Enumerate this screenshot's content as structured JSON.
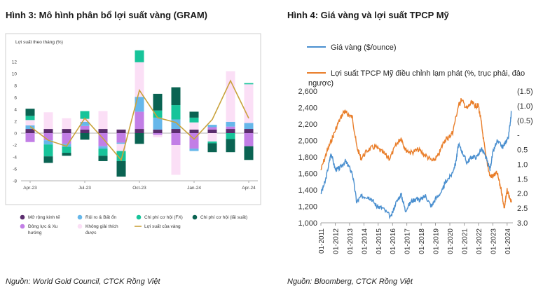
{
  "left": {
    "title": "Hình 3: Mô hình phân bổ lợi suất vàng (GRAM)",
    "source": "Nguồn: World Gold Council, CTCK Rồng Việt",
    "chart_data": {
      "type": "bar",
      "stacked": true,
      "ylabel": "Lợi suất theo tháng (%)",
      "ylim": [
        -8,
        12
      ],
      "yticks": [
        -8,
        -6,
        -4,
        -2,
        0,
        2,
        4,
        6,
        8,
        10,
        12
      ],
      "categories": [
        "Apr-23",
        "May-23",
        "Jun-23",
        "Jul-23",
        "Aug-23",
        "Sep-23",
        "Oct-23",
        "Nov-23",
        "Dec-23",
        "Jan-24",
        "Feb-24",
        "Mar-24",
        "Apr-24"
      ],
      "xtick_labels": [
        {
          "index": 0,
          "label": "Apr-23"
        },
        {
          "index": 3,
          "label": "Jul-23"
        },
        {
          "index": 6,
          "label": "Oct-23"
        },
        {
          "index": 9,
          "label": "Jan-24"
        },
        {
          "index": 12,
          "label": "Apr-24"
        }
      ],
      "series": [
        {
          "name": "Mở rộng kinh tế",
          "color": "#5b2d6e",
          "values": [
            0.7,
            0.7,
            0.7,
            0.6,
            0.7,
            0.6,
            0.7,
            0.6,
            0.7,
            0.6,
            0.6,
            0.7,
            0.7
          ]
        },
        {
          "name": "Đông lực & Xu hướng",
          "color": "#c27ee6",
          "values": [
            -1.5,
            -1.2,
            -1.8,
            0.6,
            -2.2,
            -1.6,
            2.9,
            -0.3,
            -2.0,
            -2.6,
            0.4,
            0.4,
            -2.2
          ]
        },
        {
          "name": "Rủi ro & Bất ổn",
          "color": "#66b7ea",
          "values": [
            0.6,
            -0.7,
            -0.5,
            0.7,
            -0.4,
            -0.2,
            2.5,
            2.0,
            1.6,
            -0.4,
            0.4,
            0.8,
            1.0
          ]
        },
        {
          "name": "Không giải thích được",
          "color": "#fbdff6",
          "values": [
            0.9,
            2.8,
            1.8,
            0.5,
            3.0,
            -1.2,
            5.8,
            -0.4,
            -5.0,
            1.2,
            -1.4,
            8.5,
            6.5
          ]
        },
        {
          "name": "Chi phí cơ hội (FX)",
          "color": "#17c49a",
          "values": [
            0.7,
            -2.0,
            -1.0,
            1.3,
            -1.2,
            -1.7,
            2.0,
            1.2,
            2.4,
            0.8,
            -0.3,
            -1.0,
            0.2
          ]
        },
        {
          "name": "Chi phí cơ hội (lãi suất)",
          "color": "#0a6352",
          "values": [
            1.2,
            -1.1,
            -0.5,
            -1.1,
            -0.9,
            -2.6,
            -1.8,
            2.8,
            3.0,
            1.0,
            -1.5,
            -2.2,
            -2.3
          ]
        }
      ],
      "line": {
        "name": "Lợi suất của vàng",
        "color": "#c9a23c",
        "values": [
          1.1,
          -1.2,
          -2.2,
          2.5,
          -0.9,
          -4.5,
          7.2,
          2.6,
          1.8,
          -1.0,
          2.3,
          8.8,
          2.5
        ]
      }
    }
  },
  "right": {
    "title": "Hình 4: Giá vàng và lợi suất TPCP Mỹ",
    "source": "Nguồn: Bloomberg, CTCK Rồng Việt",
    "chart_data": {
      "type": "line",
      "ylim_left": [
        1000,
        2600
      ],
      "yticks_left": [
        1000,
        1200,
        1400,
        1600,
        1800,
        2000,
        2200,
        2400,
        2600
      ],
      "ytick_labels_left": [
        "1,000",
        "1,200",
        "1,400",
        "1,600",
        "1,800",
        "2,000",
        "2,200",
        "2,400",
        "2,600"
      ],
      "ylim_right": [
        3.0,
        -1.5
      ],
      "right_axis_inverted": true,
      "yticks_right": [
        "(1.5)",
        "(1.0)",
        "(0.5)",
        "-",
        "0.5",
        "1.0",
        "1.5",
        "2.0",
        "2.5",
        "3.0"
      ],
      "xlabels": [
        "01-2011",
        "01-2012",
        "01-2013",
        "01-2014",
        "01-2015",
        "01-2016",
        "01-2017",
        "01-2018",
        "01-2019",
        "01-2020",
        "01-2021",
        "01-2022",
        "01-2023",
        "01-2024"
      ],
      "series": [
        {
          "name": "Giá vàng ($/ounce)",
          "axis": "left",
          "color": "#4a8fcf",
          "x": [
            2011.0,
            2011.3,
            2011.6,
            2011.7,
            2012.0,
            2012.3,
            2012.7,
            2012.9,
            2013.2,
            2013.5,
            2013.8,
            2014.2,
            2014.5,
            2014.9,
            2015.3,
            2015.9,
            2016.2,
            2016.6,
            2016.9,
            2017.3,
            2017.7,
            2017.9,
            2018.3,
            2018.7,
            2019.0,
            2019.5,
            2019.7,
            2020.1,
            2020.4,
            2020.6,
            2020.9,
            2021.2,
            2021.5,
            2021.9,
            2022.2,
            2022.5,
            2022.8,
            2023.0,
            2023.3,
            2023.7,
            2023.9,
            2024.1,
            2024.3
          ],
          "y": [
            1360,
            1500,
            1750,
            1850,
            1650,
            1660,
            1750,
            1700,
            1600,
            1250,
            1320,
            1320,
            1300,
            1200,
            1180,
            1070,
            1230,
            1350,
            1150,
            1260,
            1300,
            1270,
            1330,
            1200,
            1290,
            1400,
            1500,
            1580,
            1720,
            1950,
            1850,
            1730,
            1800,
            1800,
            1900,
            1800,
            1650,
            1850,
            1990,
            1920,
            1980,
            2050,
            2350
          ]
        },
        {
          "name": "Lợi suất TPCP Mỹ điều chỉnh lạm phát (%, trục phải, đảo ngược)",
          "axis": "right",
          "color": "#e97e2a",
          "x": [
            2011.0,
            2011.4,
            2011.8,
            2012.2,
            2012.6,
            2012.9,
            2013.2,
            2013.5,
            2013.8,
            2014.3,
            2014.8,
            2015.3,
            2015.8,
            2016.3,
            2016.6,
            2016.9,
            2017.3,
            2017.8,
            2018.3,
            2018.8,
            2019.2,
            2019.6,
            2019.9,
            2020.2,
            2020.6,
            2020.8,
            2021.2,
            2021.5,
            2021.8,
            2022.0,
            2022.2,
            2022.5,
            2022.8,
            2023.0,
            2023.3,
            2023.6,
            2023.8,
            2024.0,
            2024.3
          ],
          "y": [
            1.2,
            0.6,
            0.1,
            -0.4,
            -0.8,
            -0.7,
            -0.6,
            0.4,
            0.8,
            0.5,
            0.4,
            0.6,
            0.8,
            0.3,
            0.1,
            0.5,
            0.6,
            0.5,
            0.7,
            0.9,
            0.7,
            0.2,
            0.1,
            -0.1,
            -1.0,
            -1.2,
            -0.9,
            -1.1,
            -1.0,
            -1.0,
            -0.4,
            0.7,
            1.4,
            1.4,
            1.3,
            1.9,
            2.5,
            1.9,
            2.3
          ]
        }
      ]
    }
  }
}
